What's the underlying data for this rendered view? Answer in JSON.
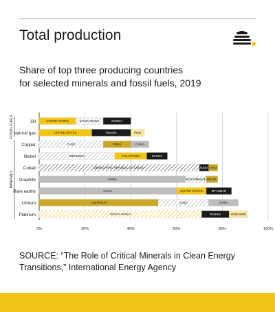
{
  "header": {
    "title": "Total production",
    "subtitle_line1": "Share of top three producing countries",
    "subtitle_line2": "for selected minerals and fossil fuels, 2019",
    "logo_icon": "beehive-icon"
  },
  "source": {
    "line1": "SOURCE: “The Role of Critical Minerals in Clean Energy",
    "line2": "Transitions,” International Energy Agency"
  },
  "colors": {
    "yellow": "#f2c418",
    "black": "#1a1a1a",
    "gray": "#bdbdbd",
    "mustard": "#c9a82a",
    "cream": "#f7e7a0",
    "accent_footer": "#f2c418"
  },
  "chart_data": {
    "type": "bar",
    "orientation": "horizontal",
    "stacked": true,
    "xlim": [
      0,
      100
    ],
    "xticks": [
      "0%",
      "20%",
      "40%",
      "60%",
      "80%",
      "100%"
    ],
    "groups": [
      {
        "label": "FOSSIL FUELS",
        "categories": [
          "Oil",
          "Natural gas"
        ]
      },
      {
        "label": "MINERALS",
        "categories": [
          "Copper",
          "Nickel",
          "Cobalt",
          "Graphite",
          "Rare earths",
          "Lithium",
          "Platinum"
        ]
      }
    ],
    "rows": [
      {
        "category": "Oil",
        "segments": [
          {
            "country": "UNITED STATES",
            "value": 16,
            "style": "yellow"
          },
          {
            "country": "SAUDI ARABIA",
            "value": 12,
            "style": "hatch"
          },
          {
            "country": "RUSSIA",
            "value": 12,
            "style": "black"
          }
        ]
      },
      {
        "category": "Natural gas",
        "segments": [
          {
            "country": "UNITED STATES",
            "value": 23,
            "style": "yellow"
          },
          {
            "country": "RUSSIA",
            "value": 17,
            "style": "black"
          },
          {
            "country": "IRAN",
            "value": 6,
            "style": "cream"
          }
        ]
      },
      {
        "category": "Copper",
        "segments": [
          {
            "country": "CHILE",
            "value": 28,
            "style": "hatch"
          },
          {
            "country": "PERU",
            "value": 12,
            "style": "mustard"
          },
          {
            "country": "CHINA",
            "value": 8,
            "style": "gray"
          }
        ]
      },
      {
        "category": "Nickel",
        "segments": [
          {
            "country": "INDONESIA",
            "value": 33,
            "style": "hatch"
          },
          {
            "country": "PHILIPPINES",
            "value": 14,
            "style": "yellow"
          },
          {
            "country": "RUSSIA",
            "value": 9,
            "style": "black"
          }
        ]
      },
      {
        "category": "Cobalt",
        "segments": [
          {
            "country": "DEMOCRATIC REPUBLIC OF CONGO",
            "value": 70,
            "style": "hatch-dark"
          },
          {
            "country": "RUSSIA",
            "value": 4,
            "style": "black"
          },
          {
            "country": "AUSTRALIA",
            "value": 4,
            "style": "mustard"
          }
        ]
      },
      {
        "category": "Graphite",
        "segments": [
          {
            "country": "CHINA",
            "value": 64,
            "style": "gray"
          },
          {
            "country": "MOZAMBIQUE",
            "value": 9,
            "style": "hatch"
          },
          {
            "country": "BRAZIL",
            "value": 5,
            "style": "mustard"
          }
        ]
      },
      {
        "category": "Rare earths",
        "segments": [
          {
            "country": "CHINA",
            "value": 60,
            "style": "gray"
          },
          {
            "country": "UNITED STATES",
            "value": 13,
            "style": "yellow"
          },
          {
            "country": "MYANMAR",
            "value": 11,
            "style": "black"
          }
        ]
      },
      {
        "category": "Lithium",
        "segments": [
          {
            "country": "AUSTRALIA",
            "value": 52,
            "style": "mustard"
          },
          {
            "country": "CHILE",
            "value": 22,
            "style": "hatch"
          },
          {
            "country": "CHINA",
            "value": 13,
            "style": "gray"
          }
        ]
      },
      {
        "category": "Platinum",
        "segments": [
          {
            "country": "SOUTH AFRICA",
            "value": 71,
            "style": "hatch-yellow"
          },
          {
            "country": "RUSSIA",
            "value": 12,
            "style": "black"
          },
          {
            "country": "ZIMBABWE",
            "value": 8,
            "style": "cream"
          }
        ]
      }
    ]
  }
}
